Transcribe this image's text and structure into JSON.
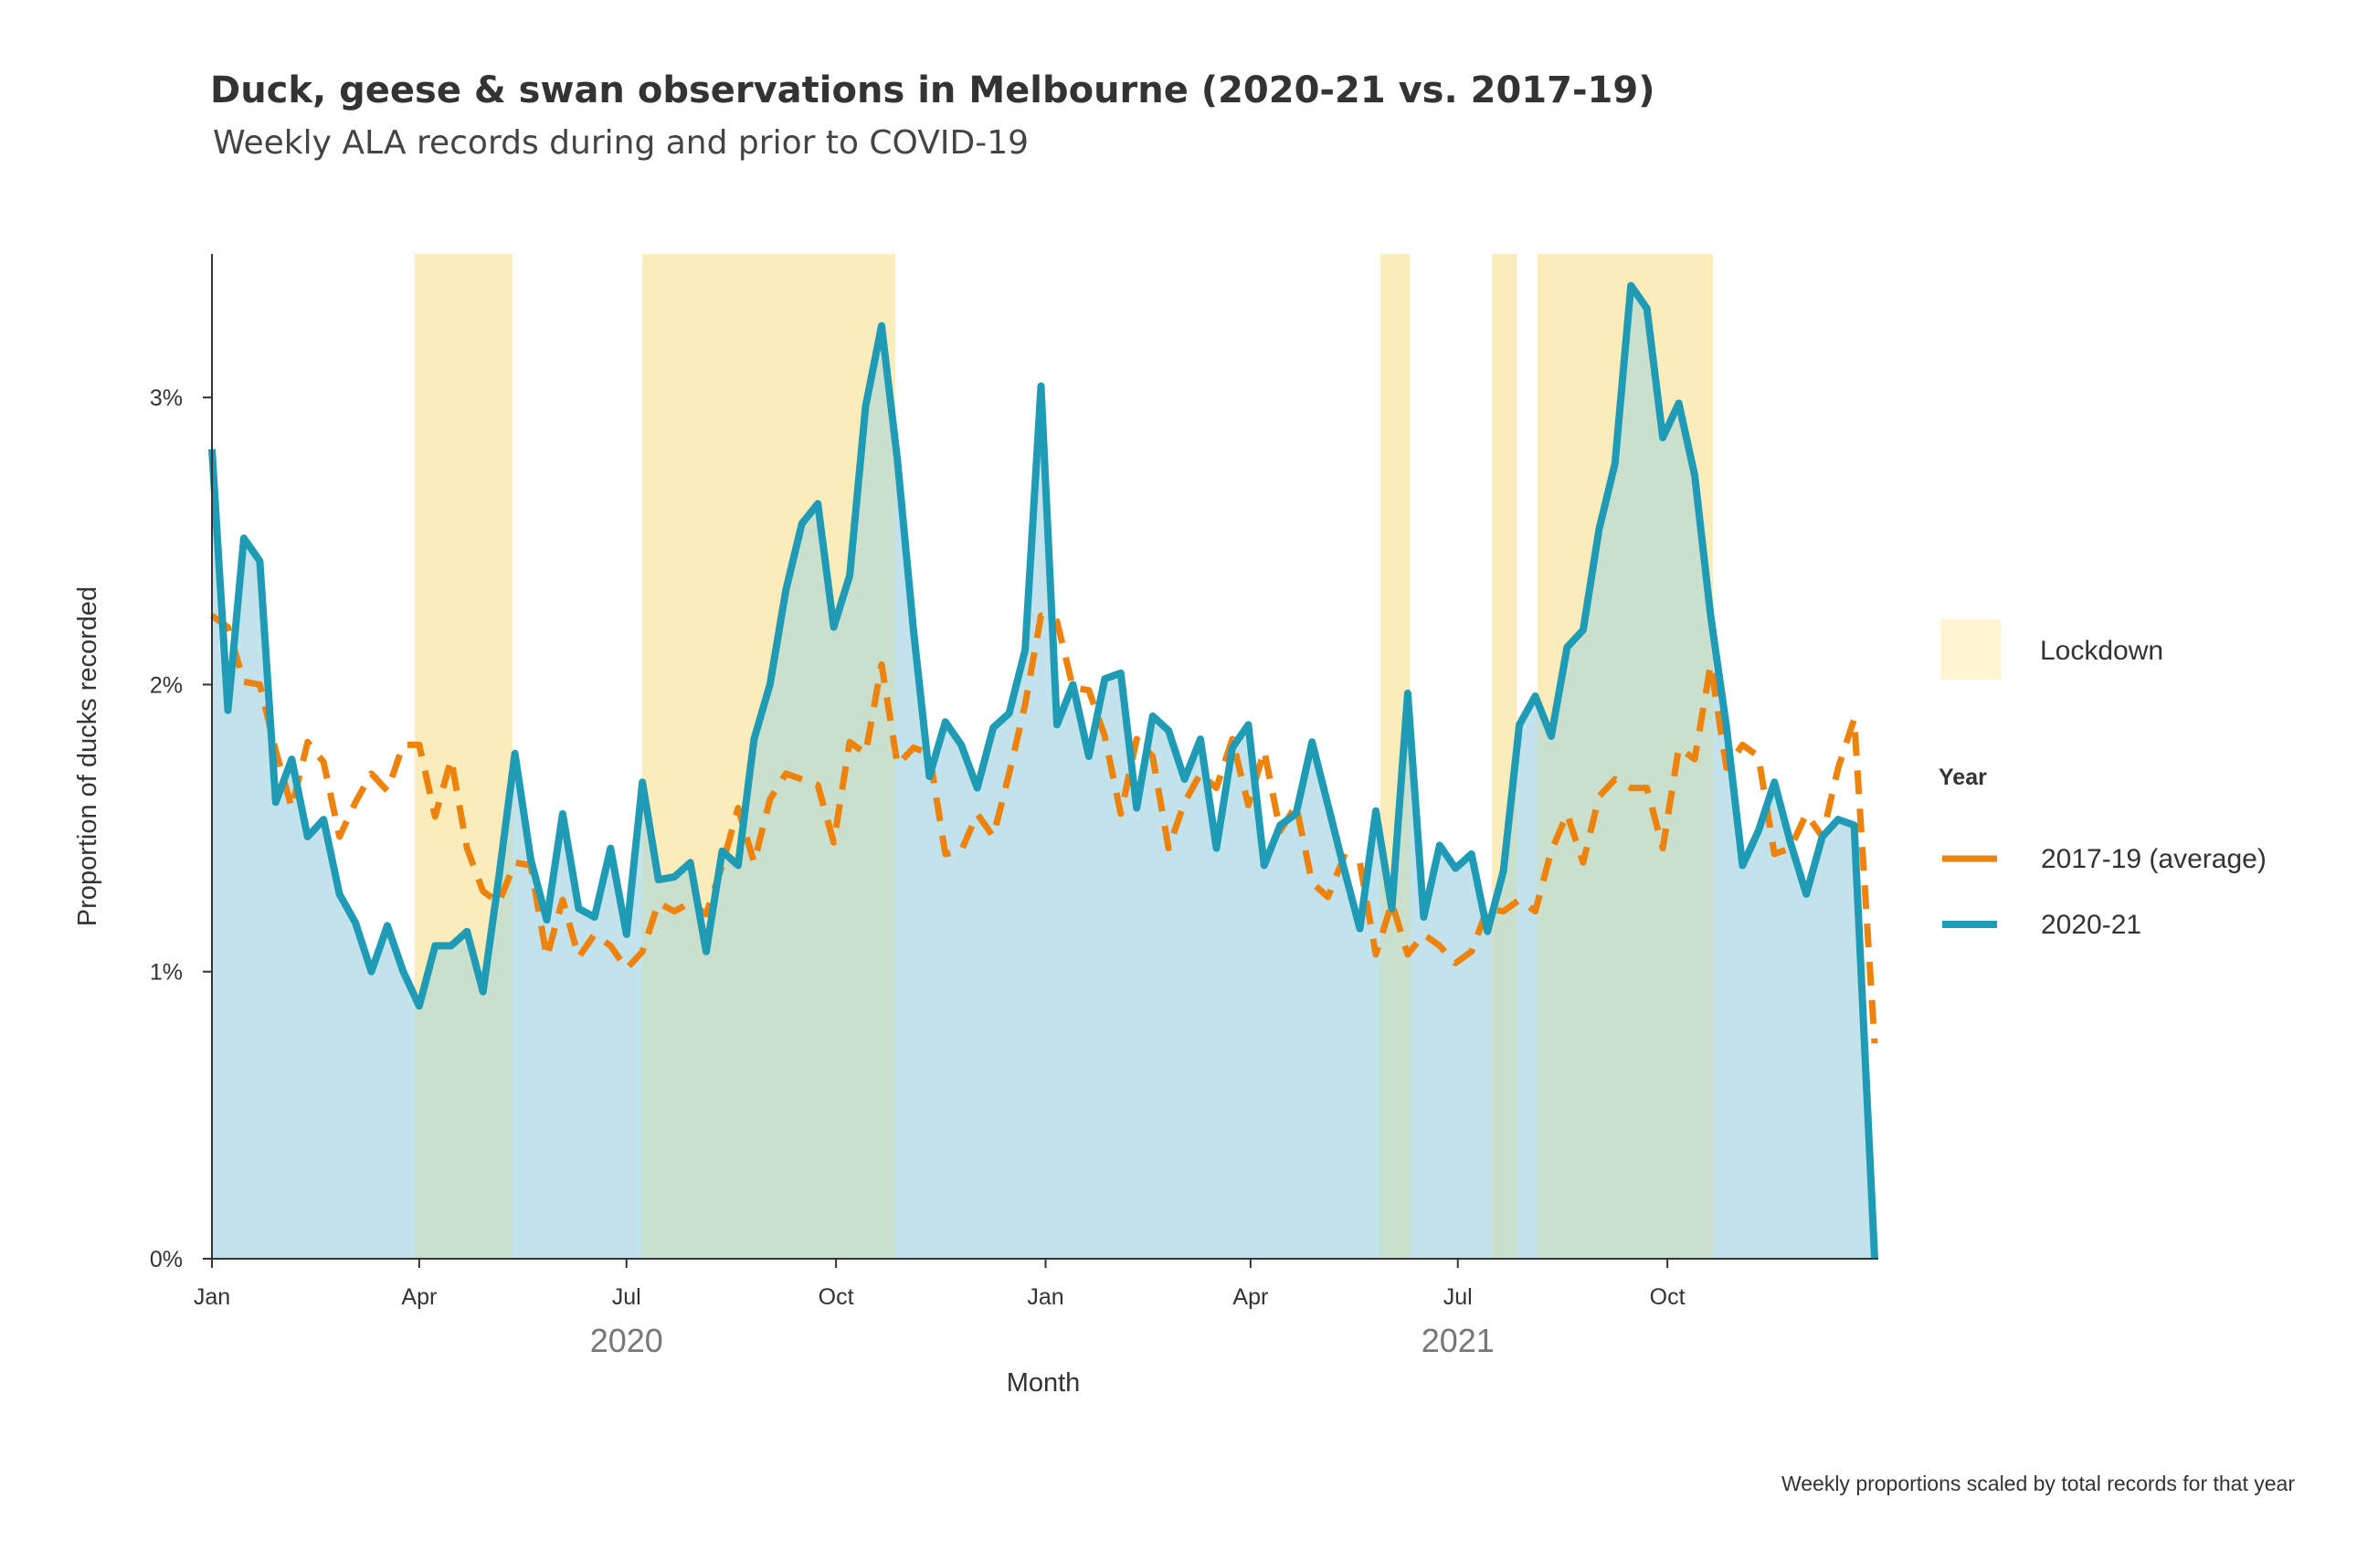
{
  "chart_data": {
    "type": "line",
    "title": "Duck, geese & swan observations in Melbourne (2020-21 vs. 2017-19)",
    "subtitle": "Weekly ALA records during and prior to COVID-19",
    "xlabel": "Month",
    "ylabel": "Proportion of ducks recorded",
    "caption": "Weekly proportions scaled by total records for that year",
    "x_range": [
      "2020-01-01",
      "2021-12-31"
    ],
    "ylim": [
      0,
      3.5
    ],
    "y_ticks": [
      {
        "value": 0,
        "label": "0%"
      },
      {
        "value": 1,
        "label": "1%"
      },
      {
        "value": 2,
        "label": "2%"
      },
      {
        "value": 3,
        "label": "3%"
      }
    ],
    "x_ticks": [
      {
        "date": "2020-01-01",
        "label": "Jan"
      },
      {
        "date": "2020-04-01",
        "label": "Apr"
      },
      {
        "date": "2020-07-01",
        "label": "Jul"
      },
      {
        "date": "2020-10-01",
        "label": "Oct"
      },
      {
        "date": "2021-01-01",
        "label": "Jan"
      },
      {
        "date": "2021-04-01",
        "label": "Apr"
      },
      {
        "date": "2021-07-01",
        "label": "Jul"
      },
      {
        "date": "2021-10-01",
        "label": "Oct"
      }
    ],
    "year_labels": [
      {
        "date": "2020-07-01",
        "label": "2020"
      },
      {
        "date": "2021-07-01",
        "label": "2021"
      }
    ],
    "lockdowns": [
      {
        "start": "2020-03-30",
        "end": "2020-05-12"
      },
      {
        "start": "2020-07-08",
        "end": "2020-10-27"
      },
      {
        "start": "2021-05-28",
        "end": "2021-06-10"
      },
      {
        "start": "2021-07-16",
        "end": "2021-07-27"
      },
      {
        "start": "2021-08-05",
        "end": "2021-10-21"
      }
    ],
    "legend": {
      "lockdown_label": "Lockdown",
      "title": "Year",
      "position": "right",
      "items": [
        {
          "label": "2017-19 (average)",
          "color": "#ed830d",
          "style": "dashed"
        },
        {
          "label": "2020-21",
          "color": "#1f9bb5",
          "style": "solid"
        }
      ]
    },
    "colors": {
      "lockdown": "#fff4d2",
      "area_fill": "#bfe2ea",
      "line_2020_21": "#1f9bb5",
      "line_2017_19": "#ed830d"
    },
    "series": [
      {
        "name": "2020-21",
        "x": [
          "2020-01-01",
          "2020-01-08",
          "2020-01-15",
          "2020-01-22",
          "2020-01-29",
          "2020-02-05",
          "2020-02-12",
          "2020-02-19",
          "2020-02-26",
          "2020-03-04",
          "2020-03-11",
          "2020-03-18",
          "2020-03-25",
          "2020-04-01",
          "2020-04-08",
          "2020-04-15",
          "2020-04-22",
          "2020-04-29",
          "2020-05-06",
          "2020-05-13",
          "2020-05-20",
          "2020-05-27",
          "2020-06-03",
          "2020-06-10",
          "2020-06-17",
          "2020-06-24",
          "2020-07-01",
          "2020-07-08",
          "2020-07-15",
          "2020-07-22",
          "2020-07-29",
          "2020-08-05",
          "2020-08-12",
          "2020-08-19",
          "2020-08-26",
          "2020-09-02",
          "2020-09-09",
          "2020-09-16",
          "2020-09-23",
          "2020-09-30",
          "2020-10-07",
          "2020-10-14",
          "2020-10-21",
          "2020-10-28",
          "2020-11-04",
          "2020-11-11",
          "2020-11-18",
          "2020-11-25",
          "2020-12-02",
          "2020-12-09",
          "2020-12-16",
          "2020-12-23",
          "2020-12-30",
          "2021-01-06",
          "2021-01-13",
          "2021-01-20",
          "2021-01-27",
          "2021-02-03",
          "2021-02-10",
          "2021-02-17",
          "2021-02-24",
          "2021-03-03",
          "2021-03-10",
          "2021-03-17",
          "2021-03-24",
          "2021-03-31",
          "2021-04-07",
          "2021-04-14",
          "2021-04-21",
          "2021-04-28",
          "2021-05-05",
          "2021-05-12",
          "2021-05-19",
          "2021-05-26",
          "2021-06-02",
          "2021-06-09",
          "2021-06-16",
          "2021-06-23",
          "2021-06-30",
          "2021-07-07",
          "2021-07-14",
          "2021-07-21",
          "2021-07-28",
          "2021-08-04",
          "2021-08-11",
          "2021-08-18",
          "2021-08-25",
          "2021-09-01",
          "2021-09-08",
          "2021-09-15",
          "2021-09-22",
          "2021-09-29",
          "2021-10-06",
          "2021-10-13",
          "2021-10-20",
          "2021-10-27",
          "2021-11-03",
          "2021-11-10",
          "2021-11-17",
          "2021-11-24",
          "2021-12-01",
          "2021-12-08",
          "2021-12-15",
          "2021-12-22",
          "2021-12-31"
        ],
        "values": [
          2.82,
          1.91,
          2.51,
          2.43,
          1.59,
          1.74,
          1.47,
          1.53,
          1.27,
          1.17,
          1.0,
          1.16,
          1.0,
          0.88,
          1.09,
          1.09,
          1.14,
          0.93,
          1.33,
          1.76,
          1.39,
          1.18,
          1.55,
          1.22,
          1.19,
          1.43,
          1.13,
          1.66,
          1.32,
          1.33,
          1.38,
          1.07,
          1.42,
          1.37,
          1.81,
          2.0,
          2.33,
          2.56,
          2.63,
          2.2,
          2.38,
          2.97,
          3.25,
          2.78,
          2.19,
          1.68,
          1.87,
          1.79,
          1.64,
          1.85,
          1.9,
          2.12,
          3.04,
          1.86,
          2.0,
          1.75,
          2.02,
          2.04,
          1.57,
          1.89,
          1.84,
          1.67,
          1.81,
          1.43,
          1.78,
          1.86,
          1.37,
          1.51,
          1.55,
          1.8,
          1.58,
          1.36,
          1.15,
          1.56,
          1.22,
          1.97,
          1.19,
          1.44,
          1.36,
          1.41,
          1.14,
          1.35,
          1.86,
          1.96,
          1.82,
          2.13,
          2.19,
          2.54,
          2.77,
          3.39,
          3.31,
          2.86,
          2.98,
          2.73,
          2.24,
          1.85,
          1.37,
          1.49,
          1.66,
          1.45,
          1.27,
          1.47,
          1.53,
          1.51,
          0.0
        ]
      },
      {
        "name": "2017-19 (average)",
        "x": [
          "2020-01-01",
          "2020-01-08",
          "2020-01-15",
          "2020-01-22",
          "2020-01-29",
          "2020-02-05",
          "2020-02-12",
          "2020-02-19",
          "2020-02-26",
          "2020-03-04",
          "2020-03-11",
          "2020-03-18",
          "2020-03-25",
          "2020-04-01",
          "2020-04-08",
          "2020-04-15",
          "2020-04-22",
          "2020-04-29",
          "2020-05-06",
          "2020-05-13",
          "2020-05-20",
          "2020-05-27",
          "2020-06-03",
          "2020-06-10",
          "2020-06-17",
          "2020-06-24",
          "2020-07-01",
          "2020-07-08",
          "2020-07-15",
          "2020-07-22",
          "2020-07-29",
          "2020-08-05",
          "2020-08-12",
          "2020-08-19",
          "2020-08-26",
          "2020-09-02",
          "2020-09-09",
          "2020-09-16",
          "2020-09-23",
          "2020-09-30",
          "2020-10-07",
          "2020-10-14",
          "2020-10-21",
          "2020-10-28",
          "2020-11-04",
          "2020-11-11",
          "2020-11-18",
          "2020-11-25",
          "2020-12-02",
          "2020-12-09",
          "2020-12-16",
          "2020-12-23",
          "2020-12-30",
          "2021-01-06",
          "2021-01-13",
          "2021-01-20",
          "2021-01-27",
          "2021-02-03",
          "2021-02-10",
          "2021-02-17",
          "2021-02-24",
          "2021-03-03",
          "2021-03-10",
          "2021-03-17",
          "2021-03-24",
          "2021-03-31",
          "2021-04-07",
          "2021-04-14",
          "2021-04-21",
          "2021-04-28",
          "2021-05-05",
          "2021-05-12",
          "2021-05-19",
          "2021-05-26",
          "2021-06-02",
          "2021-06-09",
          "2021-06-16",
          "2021-06-23",
          "2021-06-30",
          "2021-07-07",
          "2021-07-14",
          "2021-07-21",
          "2021-07-28",
          "2021-08-04",
          "2021-08-11",
          "2021-08-18",
          "2021-08-25",
          "2021-09-01",
          "2021-09-08",
          "2021-09-15",
          "2021-09-22",
          "2021-09-29",
          "2021-10-06",
          "2021-10-13",
          "2021-10-20",
          "2021-10-27",
          "2021-11-03",
          "2021-11-10",
          "2021-11-17",
          "2021-11-24",
          "2021-12-01",
          "2021-12-08",
          "2021-12-15",
          "2021-12-22",
          "2021-12-31"
        ],
        "values": [
          2.24,
          2.2,
          2.01,
          2.0,
          1.77,
          1.57,
          1.8,
          1.73,
          1.47,
          1.59,
          1.69,
          1.63,
          1.79,
          1.79,
          1.54,
          1.74,
          1.43,
          1.28,
          1.24,
          1.38,
          1.37,
          1.05,
          1.25,
          1.05,
          1.13,
          1.09,
          1.01,
          1.07,
          1.24,
          1.21,
          1.24,
          1.2,
          1.37,
          1.57,
          1.38,
          1.6,
          1.69,
          1.67,
          1.65,
          1.45,
          1.8,
          1.76,
          2.07,
          1.72,
          1.78,
          1.76,
          1.41,
          1.42,
          1.55,
          1.47,
          1.69,
          1.93,
          2.24,
          2.22,
          1.99,
          1.98,
          1.82,
          1.55,
          1.81,
          1.75,
          1.43,
          1.59,
          1.69,
          1.64,
          1.81,
          1.58,
          1.77,
          1.49,
          1.58,
          1.31,
          1.26,
          1.4,
          1.38,
          1.06,
          1.24,
          1.06,
          1.13,
          1.09,
          1.03,
          1.07,
          1.22,
          1.21,
          1.25,
          1.21,
          1.42,
          1.55,
          1.38,
          1.61,
          1.67,
          1.64,
          1.64,
          1.43,
          1.78,
          1.74,
          2.07,
          1.71,
          1.79,
          1.75,
          1.41,
          1.43,
          1.55,
          1.47,
          1.71,
          1.88,
          0.75
        ]
      }
    ]
  }
}
